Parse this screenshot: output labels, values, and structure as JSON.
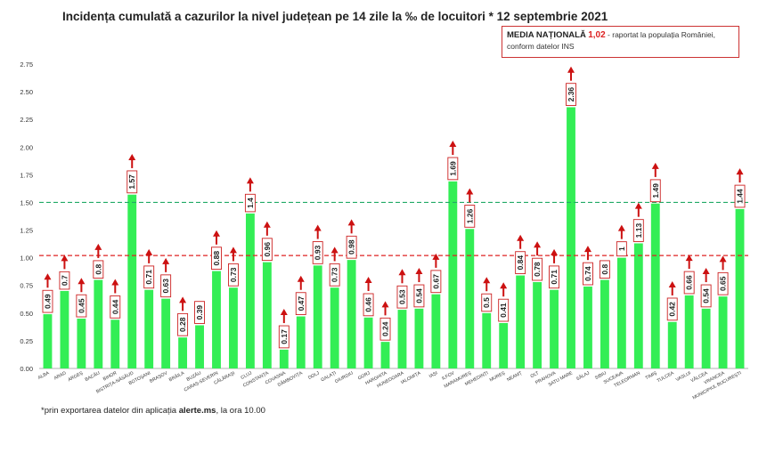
{
  "title": "Incidența cumulată a cazurilor la nivel județean pe 14 zile la ‰ de locuitori * 12 septembrie 2021",
  "media_box": {
    "label": "MEDIA NAȚIONALĂ",
    "value": "1,02",
    "text": " - raportat la populația României, conform datelor INS"
  },
  "footnote": {
    "prefix": "*prin exportarea datelor din aplicația ",
    "bold": "alerte.ms",
    "suffix": ", la ora 10.00"
  },
  "colors": {
    "bar": "#33ee55",
    "arrow": "#cc1111",
    "national_line": "#dd2222",
    "threshold_line": "#22aa66",
    "label_border": "#cc2222"
  },
  "chart_data": {
    "type": "bar",
    "title": "Incidența cumulată a cazurilor la nivel județean pe 14 zile la ‰ de locuitori * 12 septembrie 2021",
    "xlabel": "",
    "ylabel": "",
    "ylim": [
      0,
      2.75
    ],
    "yticks": [
      "0.00",
      "0.25",
      "0.50",
      "0.75",
      "1.00",
      "1.25",
      "1.50",
      "1.75",
      "2.00",
      "2.25",
      "2.50",
      "2.75"
    ],
    "grid": false,
    "categories": [
      "ALBA",
      "ARAD",
      "ARGEȘ",
      "BACĂU",
      "BIHOR",
      "BISTRIȚA-NĂSĂUD",
      "BOTOȘANI",
      "BRAȘOV",
      "BRĂILA",
      "BUZĂU",
      "CARAȘ-SEVERIN",
      "CĂLĂRAȘI",
      "CLUJ",
      "CONSTANȚA",
      "COVASNA",
      "DÂMBOVIȚA",
      "DOLJ",
      "GALAȚI",
      "GIURGIU",
      "GORJ",
      "HARGHITA",
      "HUNEDOARA",
      "IALOMIȚA",
      "IAȘI",
      "ILFOV",
      "MARAMUREȘ",
      "MEHEDINȚI",
      "MUREȘ",
      "NEAMȚ",
      "OLT",
      "PRAHOVA",
      "SATU MARE",
      "SĂLAJ",
      "SIBIU",
      "SUCEAVA",
      "TELEORMAN",
      "TIMIȘ",
      "TULCEA",
      "VASLUI",
      "VÂLCEA",
      "VRANCEA",
      "MUNICIPIUL BUCUREȘTI"
    ],
    "values": [
      0.49,
      0.7,
      0.45,
      0.8,
      0.44,
      1.57,
      0.71,
      0.63,
      0.28,
      0.39,
      0.88,
      0.73,
      1.4,
      0.96,
      0.17,
      0.47,
      0.93,
      0.73,
      0.98,
      0.46,
      0.24,
      0.53,
      0.54,
      0.67,
      1.69,
      1.26,
      0.5,
      0.41,
      0.84,
      0.78,
      0.71,
      2.36,
      0.74,
      0.8,
      1,
      1.13,
      1.49,
      0.42,
      0.66,
      0.54,
      0.65,
      1.44
    ],
    "value_labels": [
      "0.49",
      "0.7",
      "0.45",
      "0.8",
      "0.44",
      "1.57",
      "0.71",
      "0.63",
      "0.28",
      "0.39",
      "0.88",
      "0.73",
      "1.4",
      "0.96",
      "0.17",
      "0.47",
      "0.93",
      "0.73",
      "0.98",
      "0.46",
      "0.24",
      "0.53",
      "0.54",
      "0.67",
      "1.69",
      "1.26",
      "0.5",
      "0.41",
      "0.84",
      "0.78",
      "0.71",
      "2.36",
      "0.74",
      "0.8",
      "1",
      "1.13",
      "1.49",
      "0.42",
      "0.66",
      "0.54",
      "0.65",
      "1.44"
    ],
    "trend_up": [
      true,
      true,
      true,
      true,
      true,
      true,
      true,
      true,
      true,
      false,
      true,
      true,
      true,
      true,
      true,
      true,
      true,
      true,
      true,
      true,
      true,
      true,
      true,
      true,
      true,
      true,
      true,
      true,
      true,
      true,
      true,
      true,
      true,
      false,
      true,
      true,
      true,
      true,
      true,
      true,
      true,
      true
    ],
    "reference_lines": [
      {
        "value": 1.02,
        "style": "dashed",
        "color": "#dd2222"
      },
      {
        "value": 1.5,
        "style": "dashed",
        "color": "#22aa66"
      }
    ]
  }
}
